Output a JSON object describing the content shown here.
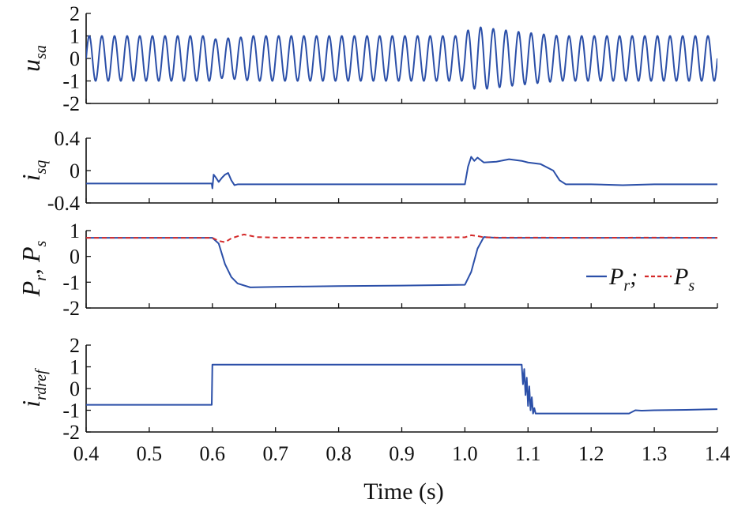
{
  "colors": {
    "series_main": "#2b4fa8",
    "series_ps": "#d42a2a",
    "axis": "#111111"
  },
  "xlabel": "Time (s)",
  "x_ticks": [
    "0.4",
    "0.5",
    "0.6",
    "0.7",
    "0.8",
    "0.9",
    "1.0",
    "1.1",
    "1.2",
    "1.3",
    "1.4"
  ],
  "legend": {
    "pr_symbol": "P",
    "pr_sub": "r",
    "sep": ";",
    "ps_symbol": "P",
    "ps_sub": "s"
  },
  "panels": [
    {
      "ylabel_main": "u",
      "ylabel_sub": "sa",
      "ylabel_extra_main": "",
      "ylabel_extra_sub": "",
      "y_ticks": [
        "2",
        "1",
        "0",
        "-1",
        "-2"
      ]
    },
    {
      "ylabel_main": "i",
      "ylabel_sub": "sq",
      "ylabel_extra_main": "",
      "ylabel_extra_sub": "",
      "y_ticks": [
        "0.4",
        "0",
        "-0.4"
      ]
    },
    {
      "ylabel_main": "P",
      "ylabel_sub": "r",
      "ylabel_extra_main": ", P",
      "ylabel_extra_sub": "s",
      "y_ticks": [
        "1",
        "0",
        "-1",
        "-2"
      ]
    },
    {
      "ylabel_main": "i",
      "ylabel_sub": "rdref",
      "ylabel_extra_main": "",
      "ylabel_extra_sub": "",
      "y_ticks": [
        "2",
        "1",
        "0",
        "-1",
        "-2"
      ]
    }
  ],
  "chart_data": [
    {
      "type": "line",
      "ylabel": "u_sa",
      "xlim": [
        0.4,
        1.4
      ],
      "ylim": [
        -2,
        2
      ],
      "series": [
        {
          "frequency_hz": 50,
          "amplitude_segments": [
            {
              "x": 0.4,
              "amp": 1.0
            },
            {
              "x": 0.6,
              "amp": 1.0
            },
            {
              "x": 0.6,
              "amp": 0.85
            },
            {
              "x": 0.65,
              "amp": 0.95
            },
            {
              "x": 0.66,
              "amp": 1.0
            },
            {
              "x": 1.0,
              "amp": 1.0
            },
            {
              "x": 1.0,
              "amp": 1.2
            },
            {
              "x": 1.02,
              "amp": 1.4
            },
            {
              "x": 1.08,
              "amp": 1.2
            },
            {
              "x": 1.15,
              "amp": 1.0
            },
            {
              "x": 1.4,
              "amp": 1.0
            }
          ]
        }
      ]
    },
    {
      "type": "line",
      "ylabel": "i_sq",
      "xlim": [
        0.4,
        1.4
      ],
      "ylim": [
        -0.4,
        0.4
      ],
      "series": [
        {
          "x": [
            0.4,
            0.599,
            0.6,
            0.602,
            0.605,
            0.61,
            0.615,
            0.62,
            0.625,
            0.63,
            0.635,
            0.64,
            0.65,
            0.66,
            0.7,
            0.8,
            0.9,
            1.0,
            1.005,
            1.01,
            1.015,
            1.02,
            1.03,
            1.05,
            1.07,
            1.09,
            1.1,
            1.12,
            1.14,
            1.15,
            1.16,
            1.2,
            1.25,
            1.3,
            1.35,
            1.4
          ],
          "y": [
            -0.16,
            -0.16,
            -0.22,
            -0.05,
            -0.08,
            -0.14,
            -0.09,
            -0.05,
            -0.03,
            -0.12,
            -0.18,
            -0.17,
            -0.17,
            -0.17,
            -0.17,
            -0.17,
            -0.17,
            -0.17,
            0.05,
            0.17,
            0.12,
            0.16,
            0.1,
            0.11,
            0.14,
            0.12,
            0.1,
            0.08,
            0.0,
            -0.12,
            -0.17,
            -0.17,
            -0.18,
            -0.17,
            -0.17,
            -0.17
          ]
        }
      ]
    },
    {
      "type": "line",
      "ylabel": "P_r, P_s",
      "xlim": [
        0.4,
        1.4
      ],
      "ylim": [
        -2,
        1
      ],
      "legend_position": "right",
      "series": [
        {
          "name": "P_r",
          "x": [
            0.4,
            0.6,
            0.61,
            0.62,
            0.63,
            0.64,
            0.66,
            0.7,
            0.8,
            0.9,
            1.0,
            1.01,
            1.02,
            1.03,
            1.05,
            1.1,
            1.2,
            1.3,
            1.4
          ],
          "y": [
            0.72,
            0.72,
            0.5,
            -0.3,
            -0.8,
            -1.05,
            -1.2,
            -1.18,
            -1.15,
            -1.13,
            -1.1,
            -0.6,
            0.3,
            0.75,
            0.72,
            0.72,
            0.72,
            0.72,
            0.72
          ]
        },
        {
          "name": "P_s",
          "x": [
            0.4,
            0.6,
            0.61,
            0.62,
            0.63,
            0.64,
            0.65,
            0.66,
            0.67,
            0.7,
            0.8,
            0.9,
            1.0,
            1.01,
            1.02,
            1.03,
            1.05,
            1.1,
            1.2,
            1.3,
            1.4
          ],
          "y": [
            0.72,
            0.72,
            0.6,
            0.55,
            0.7,
            0.78,
            0.85,
            0.8,
            0.75,
            0.73,
            0.73,
            0.73,
            0.74,
            0.82,
            0.79,
            0.74,
            0.73,
            0.73,
            0.72,
            0.73,
            0.72
          ]
        }
      ]
    },
    {
      "type": "line",
      "ylabel": "i_rdref",
      "xlim": [
        0.4,
        1.4
      ],
      "ylim": [
        -2,
        2
      ],
      "series": [
        {
          "x": [
            0.4,
            0.599,
            0.6,
            1.09,
            1.092,
            1.094,
            1.096,
            1.098,
            1.1,
            1.102,
            1.104,
            1.106,
            1.108,
            1.11,
            1.112,
            1.15,
            1.2,
            1.26,
            1.27,
            1.28,
            1.3,
            1.35,
            1.4
          ],
          "y": [
            -0.75,
            -0.75,
            1.1,
            1.1,
            0.2,
            0.9,
            -0.3,
            0.5,
            -0.8,
            0.1,
            -1.0,
            -0.4,
            -1.15,
            -0.9,
            -1.15,
            -1.15,
            -1.15,
            -1.15,
            -1.0,
            -1.02,
            -1.0,
            -0.98,
            -0.95
          ]
        }
      ]
    }
  ]
}
